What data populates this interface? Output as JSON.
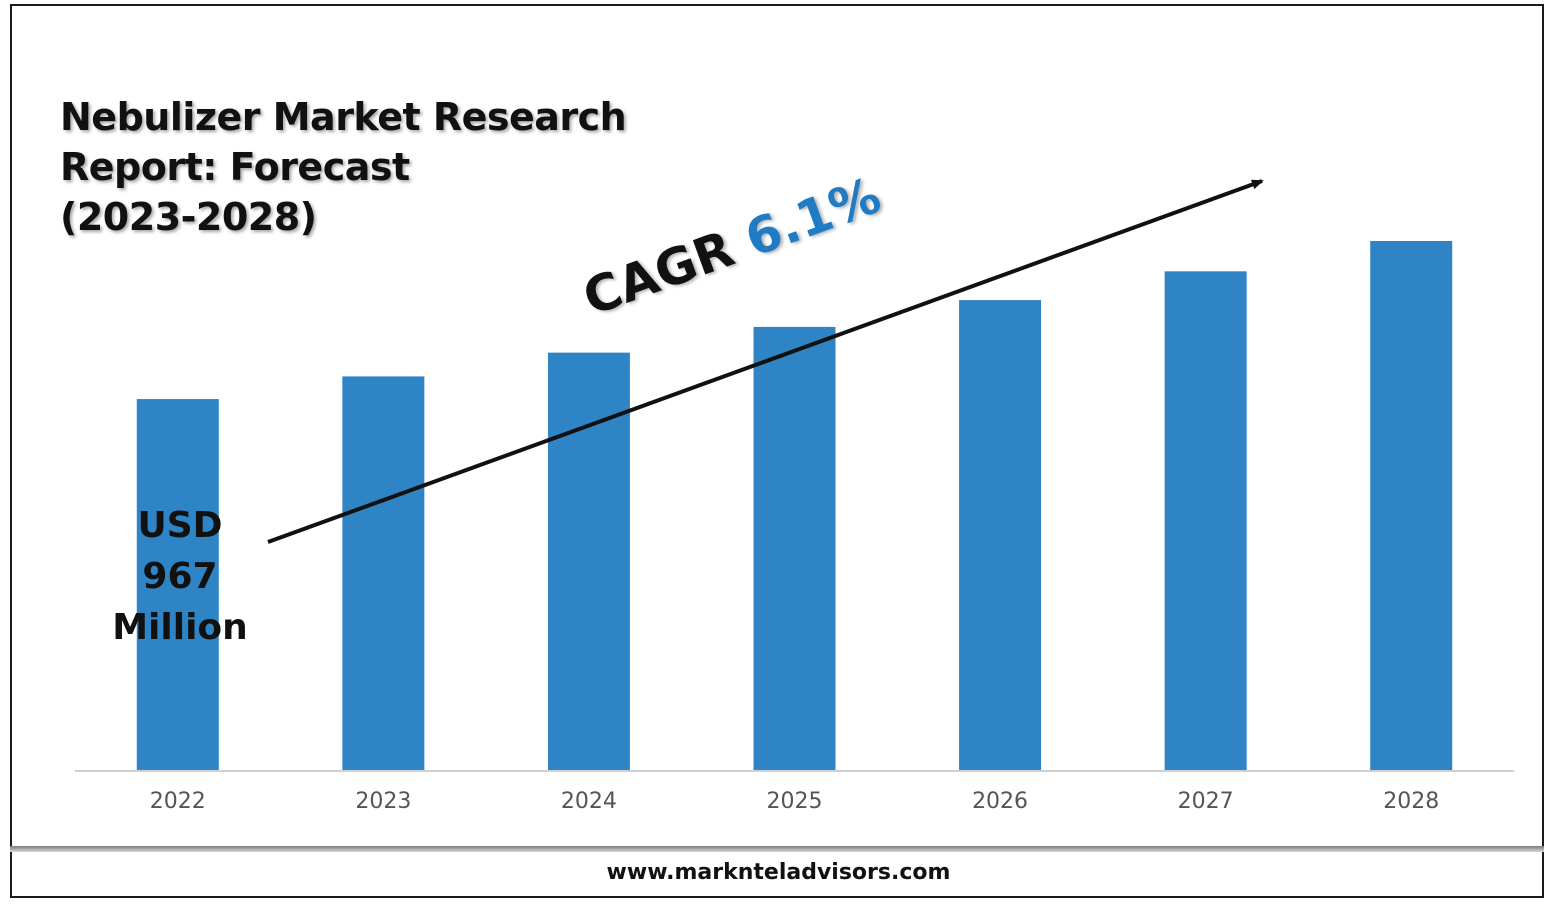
{
  "title_lines": [
    "Nebulizer Market Research",
    "Report: Forecast",
    "(2023-2028)"
  ],
  "annotations": {
    "start_value_lines": [
      "USD",
      "967",
      "Million"
    ],
    "cagr_prefix": "CAGR",
    "cagr_value": "6.1%"
  },
  "footer": {
    "url": "www.marknteladvisors.com"
  },
  "colors": {
    "bar": "#2f84c6",
    "cagr_value": "#1f7bc4",
    "axis": "#d0d0d0",
    "tick_text": "#555555"
  },
  "chart_data": {
    "type": "bar",
    "title": "Nebulizer Market Research Report: Forecast (2023-2028)",
    "categories": [
      "2022",
      "2023",
      "2024",
      "2025",
      "2026",
      "2027",
      "2028"
    ],
    "values": [
      967,
      1026,
      1088,
      1155,
      1225,
      1300,
      1379
    ],
    "value_unit": "USD Million",
    "xlabel": "",
    "ylabel": "",
    "ylim": [
      0,
      1379
    ],
    "grid": false,
    "legend": "none"
  }
}
